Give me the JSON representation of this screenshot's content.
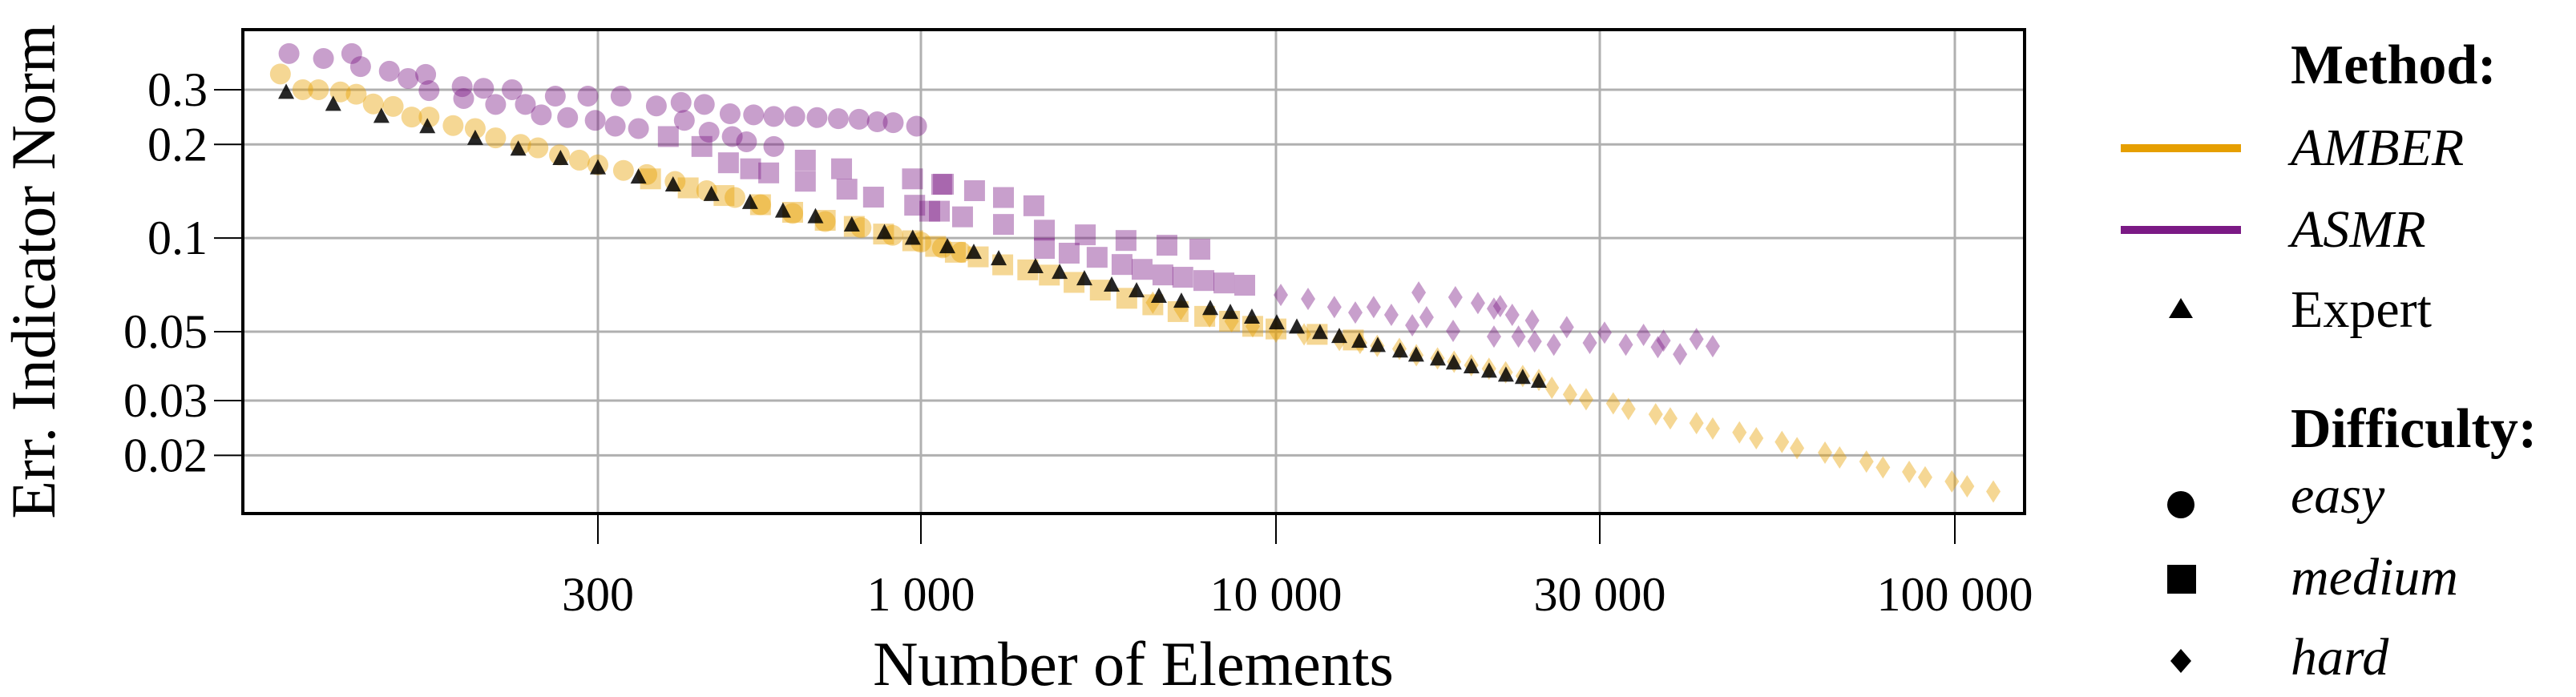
{
  "chart_data": {
    "type": "scatter",
    "xlabel": "Number of Elements",
    "ylabel": "Err. Indicator Norm",
    "x_scale": "log",
    "y_scale": "log",
    "xlim": [
      80,
      127000
    ],
    "ylim": [
      0.013,
      0.468
    ],
    "x_ticks": [
      300,
      1000,
      10000,
      30000,
      100000
    ],
    "x_tick_labels": [
      "300",
      "1 000",
      "10 000",
      "30 000",
      "100 000"
    ],
    "y_ticks": [
      0.3,
      0.2,
      0.1,
      0.05,
      0.03,
      0.02
    ],
    "y_tick_labels": [
      "0.3",
      "0.2",
      "0.1",
      "0.05",
      "0.03",
      "0.02"
    ],
    "grid": true,
    "legend_placement": "right-outside",
    "legend": {
      "method_title": "Method:",
      "difficulty_title": "Difficulty:",
      "methods": [
        {
          "name": "AMBER",
          "color": "#E69F00"
        },
        {
          "name": "ASMR",
          "color": "#7B1A85"
        },
        {
          "name": "Expert",
          "color": "#000000",
          "marker": "triangle"
        }
      ],
      "difficulties": [
        {
          "name": "easy",
          "marker": "circle"
        },
        {
          "name": "medium",
          "marker": "square"
        },
        {
          "name": "hard",
          "marker": "diamond"
        }
      ]
    },
    "series": [
      {
        "method": "AMBER",
        "difficulty": "easy",
        "color": "#E69F00",
        "marker": "circle",
        "points": [
          [
            92,
            0.337
          ],
          [
            100,
            0.3
          ],
          [
            106,
            0.3
          ],
          [
            115,
            0.295
          ],
          [
            122,
            0.29
          ],
          [
            130,
            0.27
          ],
          [
            140,
            0.265
          ],
          [
            150,
            0.245
          ],
          [
            160,
            0.245
          ],
          [
            175,
            0.23
          ],
          [
            190,
            0.225
          ],
          [
            205,
            0.21
          ],
          [
            225,
            0.2
          ],
          [
            240,
            0.195
          ],
          [
            260,
            0.185
          ],
          [
            280,
            0.178
          ],
          [
            300,
            0.172
          ],
          [
            330,
            0.165
          ],
          [
            360,
            0.16
          ],
          [
            400,
            0.152
          ],
          [
            450,
            0.142
          ],
          [
            500,
            0.135
          ],
          [
            550,
            0.128
          ],
          [
            620,
            0.12
          ],
          [
            700,
            0.113
          ],
          [
            800,
            0.108
          ],
          [
            900,
            0.102
          ],
          [
            1000,
            0.097
          ],
          [
            1150,
            0.093
          ],
          [
            1300,
            0.09
          ]
        ]
      },
      {
        "method": "AMBER",
        "difficulty": "medium",
        "color": "#E69F00",
        "marker": "square",
        "points": [
          [
            365,
            0.155
          ],
          [
            420,
            0.145
          ],
          [
            480,
            0.137
          ],
          [
            550,
            0.128
          ],
          [
            620,
            0.121
          ],
          [
            700,
            0.114
          ],
          [
            780,
            0.109
          ],
          [
            870,
            0.103
          ],
          [
            970,
            0.098
          ],
          [
            1100,
            0.094
          ],
          [
            1250,
            0.09
          ],
          [
            1450,
            0.087
          ],
          [
            1700,
            0.082
          ],
          [
            2000,
            0.079
          ],
          [
            2300,
            0.076
          ],
          [
            2700,
            0.072
          ],
          [
            3200,
            0.068
          ],
          [
            3800,
            0.064
          ],
          [
            4500,
            0.061
          ],
          [
            5300,
            0.058
          ],
          [
            6300,
            0.056
          ],
          [
            7400,
            0.054
          ],
          [
            8600,
            0.052
          ],
          [
            10000,
            0.051
          ],
          [
            11500,
            0.049
          ],
          [
            13000,
            0.047
          ]
        ]
      },
      {
        "method": "AMBER",
        "difficulty": "hard",
        "color": "#E69F00",
        "marker": "diamond",
        "points": [
          [
            4500,
            0.062
          ],
          [
            5400,
            0.059
          ],
          [
            6500,
            0.056
          ],
          [
            7500,
            0.054
          ],
          [
            8600,
            0.052
          ],
          [
            10000,
            0.05
          ],
          [
            11000,
            0.049
          ],
          [
            12400,
            0.047
          ],
          [
            13300,
            0.046
          ],
          [
            14100,
            0.045
          ],
          [
            15200,
            0.044
          ],
          [
            16100,
            0.042
          ],
          [
            17300,
            0.041
          ],
          [
            18300,
            0.04
          ],
          [
            19400,
            0.039
          ],
          [
            20600,
            0.038
          ],
          [
            21800,
            0.037
          ],
          [
            23100,
            0.036
          ],
          [
            24400,
            0.035
          ],
          [
            25500,
            0.033
          ],
          [
            27120,
            0.0314
          ],
          [
            28640,
            0.0303
          ],
          [
            31400,
            0.0294
          ],
          [
            33060,
            0.0282
          ],
          [
            36260,
            0.0271
          ],
          [
            38100,
            0.0263
          ],
          [
            41640,
            0.0254
          ],
          [
            44000,
            0.0244
          ],
          [
            48170,
            0.0237
          ],
          [
            51000,
            0.0227
          ],
          [
            55640,
            0.0221
          ],
          [
            58560,
            0.0211
          ],
          [
            64390,
            0.0204
          ],
          [
            67660,
            0.0197
          ],
          [
            74100,
            0.0191
          ],
          [
            78370,
            0.0183
          ],
          [
            85660,
            0.0177
          ],
          [
            90420,
            0.017
          ],
          [
            99000,
            0.0165
          ],
          [
            104300,
            0.0159
          ],
          [
            114100,
            0.0153
          ]
        ]
      },
      {
        "method": "ASMR",
        "difficulty": "easy",
        "color": "#7B1A85",
        "marker": "circle",
        "points": [
          [
            95,
            0.392
          ],
          [
            108,
            0.378
          ],
          [
            120,
            0.392
          ],
          [
            124,
            0.356
          ],
          [
            138,
            0.344
          ],
          [
            148,
            0.326
          ],
          [
            158,
            0.336
          ],
          [
            160,
            0.298
          ],
          [
            181,
            0.307
          ],
          [
            182,
            0.281
          ],
          [
            196,
            0.303
          ],
          [
            205,
            0.269
          ],
          [
            218,
            0.3
          ],
          [
            229,
            0.269
          ],
          [
            243,
            0.249
          ],
          [
            256,
            0.286
          ],
          [
            268,
            0.244
          ],
          [
            289,
            0.286
          ],
          [
            297,
            0.239
          ],
          [
            320,
            0.229
          ],
          [
            327,
            0.286
          ],
          [
            349,
            0.225
          ],
          [
            373,
            0.266
          ],
          [
            409,
            0.273
          ],
          [
            414,
            0.239
          ],
          [
            446,
            0.269
          ],
          [
            454,
            0.219
          ],
          [
            491,
            0.251
          ],
          [
            495,
            0.212
          ],
          [
            522,
            0.204
          ],
          [
            536,
            0.249
          ],
          [
            578,
            0.246
          ],
          [
            578,
            0.197
          ],
          [
            625,
            0.246
          ],
          [
            679,
            0.244
          ],
          [
            735,
            0.242
          ],
          [
            794,
            0.241
          ],
          [
            850,
            0.2365
          ],
          [
            902,
            0.235
          ],
          [
            984,
            0.229
          ]
        ]
      },
      {
        "method": "ASMR",
        "difficulty": "medium",
        "color": "#7B1A85",
        "marker": "square",
        "points": [
          [
            390,
            0.212
          ],
          [
            442,
            0.197
          ],
          [
            488,
            0.1746
          ],
          [
            530,
            0.167
          ],
          [
            567,
            0.162
          ],
          [
            650,
            0.178
          ],
          [
            650,
            0.1523
          ],
          [
            744,
            0.167
          ],
          [
            759,
            0.1436
          ],
          [
            838,
            0.1354
          ],
          [
            969,
            0.155
          ],
          [
            977,
            0.1275
          ],
          [
            1144,
            0.1488
          ],
          [
            1127,
            0.122
          ],
          [
            1157,
            0.149
          ],
          [
            1416,
            0.142
          ],
          [
            1708,
            0.135
          ],
          [
            2080,
            0.127
          ],
          [
            1059,
            0.122
          ],
          [
            1310,
            0.117
          ],
          [
            1708,
            0.1106
          ],
          [
            2227,
            0.106
          ],
          [
            2904,
            0.1024
          ],
          [
            3781,
            0.0982
          ],
          [
            4931,
            0.0948
          ],
          [
            6105,
            0.092
          ],
          [
            2227,
            0.0926
          ],
          [
            2615,
            0.0894
          ],
          [
            3135,
            0.0867
          ],
          [
            3685,
            0.0822
          ],
          [
            4197,
            0.0793
          ],
          [
            4804,
            0.0761
          ],
          [
            5466,
            0.0748
          ],
          [
            6265,
            0.073
          ],
          [
            7136,
            0.0717
          ],
          [
            8166,
            0.0705
          ]
        ]
      },
      {
        "method": "ASMR",
        "difficulty": "hard",
        "color": "#7B1A85",
        "marker": "diamond",
        "points": [
          [
            10165,
            0.0656
          ],
          [
            11150,
            0.0637
          ],
          [
            12190,
            0.06
          ],
          [
            13090,
            0.0576
          ],
          [
            13930,
            0.06
          ],
          [
            14790,
            0.0566
          ],
          [
            15880,
            0.0524
          ],
          [
            16230,
            0.0668
          ],
          [
            16670,
            0.0556
          ],
          [
            18240,
            0.0503
          ],
          [
            18380,
            0.0645
          ],
          [
            19840,
            0.0618
          ],
          [
            20950,
            0.0593
          ],
          [
            20950,
            0.0482
          ],
          [
            21400,
            0.0604
          ],
          [
            22290,
            0.0566
          ],
          [
            22770,
            0.0482
          ],
          [
            23850,
            0.0543
          ],
          [
            24050,
            0.0465
          ],
          [
            25670,
            0.0454
          ],
          [
            26820,
            0.0517
          ],
          [
            29000,
            0.046
          ],
          [
            30490,
            0.0496
          ],
          [
            32770,
            0.0454
          ],
          [
            34800,
            0.0488
          ],
          [
            36530,
            0.0446
          ],
          [
            37240,
            0.0468
          ],
          [
            39380,
            0.0423
          ],
          [
            41640,
            0.0473
          ],
          [
            44000,
            0.0449
          ]
        ]
      },
      {
        "method": "Expert",
        "color": "#000000",
        "marker": "triangle",
        "points": [
          [
            94,
            0.294
          ],
          [
            112,
            0.269
          ],
          [
            134,
            0.246
          ],
          [
            159,
            0.228
          ],
          [
            190,
            0.209
          ],
          [
            223,
            0.193
          ],
          [
            261,
            0.18
          ],
          [
            300,
            0.168
          ],
          [
            349,
            0.157
          ],
          [
            397,
            0.148
          ],
          [
            458,
            0.138
          ],
          [
            529,
            0.13
          ],
          [
            598,
            0.122
          ],
          [
            675,
            0.117
          ],
          [
            773,
            0.11
          ],
          [
            873,
            0.104
          ],
          [
            970,
            0.0998
          ],
          [
            1187,
            0.0937
          ],
          [
            1409,
            0.0899
          ],
          [
            1656,
            0.0857
          ],
          [
            2102,
            0.0808
          ],
          [
            2459,
            0.0775
          ],
          [
            2887,
            0.0739
          ],
          [
            3446,
            0.0705
          ],
          [
            4049,
            0.0676
          ],
          [
            4680,
            0.0649
          ],
          [
            5415,
            0.0626
          ],
          [
            6531,
            0.0593
          ],
          [
            7438,
            0.0576
          ],
          [
            8555,
            0.0556
          ],
          [
            10027,
            0.0533
          ],
          [
            10733,
            0.0517
          ],
          [
            11611,
            0.0496
          ],
          [
            12396,
            0.0482
          ],
          [
            13269,
            0.0465
          ],
          [
            14125,
            0.0451
          ],
          [
            15240,
            0.0433
          ],
          [
            16090,
            0.042
          ],
          [
            17320,
            0.0408
          ],
          [
            18280,
            0.0396
          ],
          [
            19410,
            0.0385
          ],
          [
            20610,
            0.0373
          ],
          [
            21820,
            0.0362
          ],
          [
            23100,
            0.0356
          ],
          [
            24390,
            0.0346
          ]
        ]
      }
    ]
  }
}
